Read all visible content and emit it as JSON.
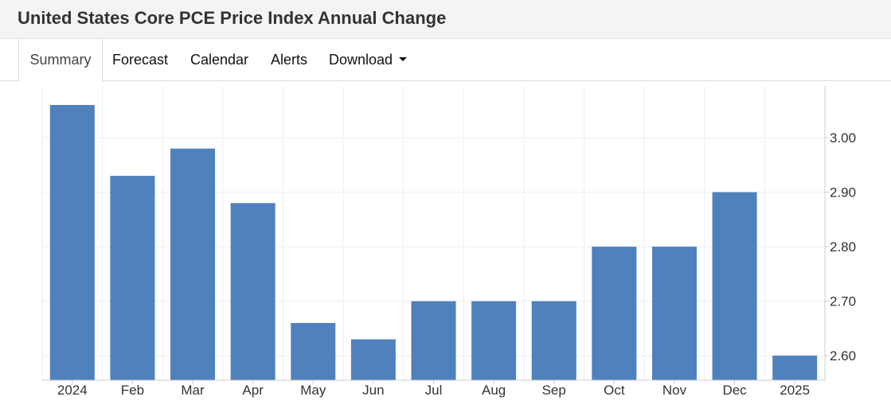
{
  "header": {
    "title": "United States Core PCE Price Index Annual Change"
  },
  "tabs": [
    {
      "label": "Summary",
      "active": true
    },
    {
      "label": "Forecast"
    },
    {
      "label": "Calendar"
    },
    {
      "label": "Alerts"
    },
    {
      "label": "Download",
      "dropdown": true
    }
  ],
  "colors": {
    "bar": "#4f81bd",
    "grid": "#eeeeee",
    "axis": "#cccccc"
  },
  "chart_data": {
    "type": "bar",
    "categories": [
      "2024",
      "Feb",
      "Mar",
      "Apr",
      "May",
      "Jun",
      "Jul",
      "Aug",
      "Sep",
      "Oct",
      "Nov",
      "Dec",
      "2025"
    ],
    "values": [
      3.06,
      2.93,
      2.98,
      2.88,
      2.66,
      2.63,
      2.7,
      2.7,
      2.7,
      2.8,
      2.8,
      2.9,
      2.6
    ],
    "yticks": [
      "2.60",
      "2.70",
      "2.80",
      "2.90",
      "3.00"
    ],
    "ylim": [
      2.555,
      3.095
    ],
    "grid": true,
    "yaxis_position": "right"
  }
}
